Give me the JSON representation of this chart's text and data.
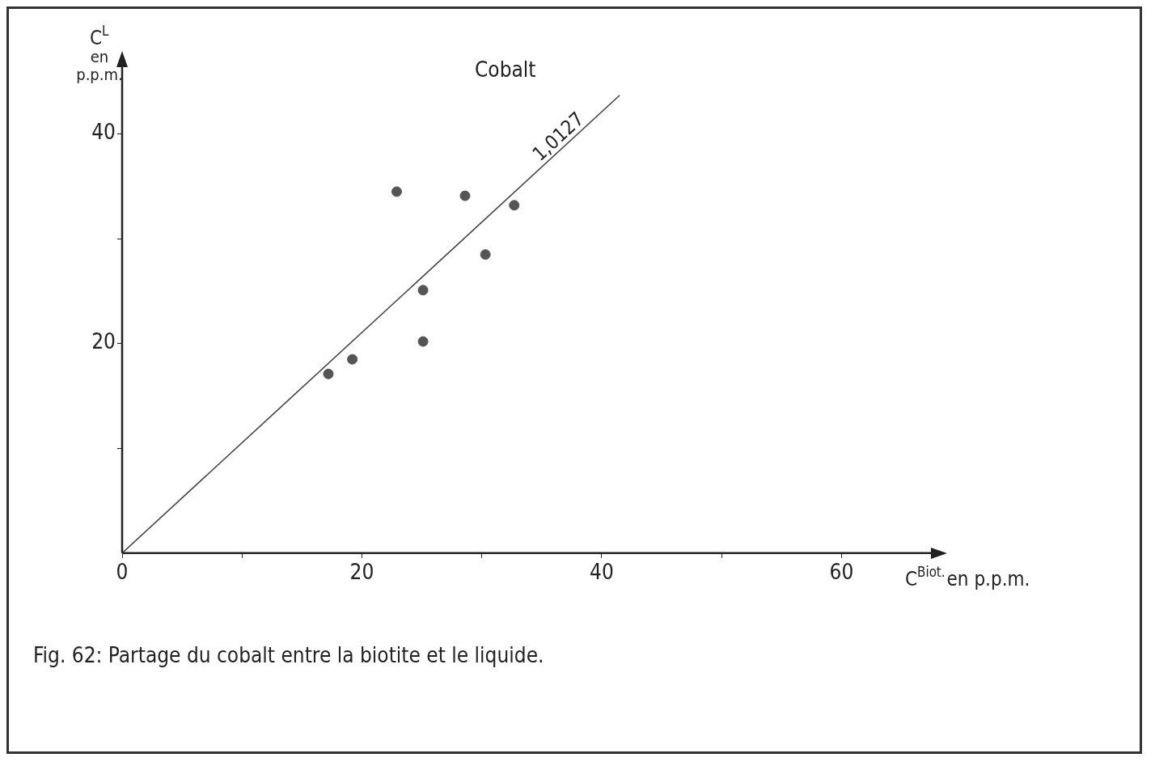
{
  "chart_data": {
    "type": "scatter",
    "title": "Cobalt",
    "xlabel": "C$^{Biot.}$en p.p.m.",
    "ylabel": "C$^{L}$ en p.p.m.",
    "xlim": [
      0,
      68
    ],
    "ylim": [
      0,
      47
    ],
    "xticks": [
      0,
      {
        "value": 10,
        "label": null
      },
      20,
      {
        "value": 30,
        "label": null
      },
      40,
      {
        "value": 50,
        "label": null
      },
      60
    ],
    "yticks": [
      {
        "value": 10,
        "label": null
      },
      20,
      {
        "value": 30,
        "label": null
      },
      40
    ],
    "grid": false,
    "legend": false,
    "marker": "circle",
    "series": [
      {
        "color": "#555555",
        "x": [
          22.9,
          28.6,
          32.7,
          30.3,
          25.1,
          25.1,
          19.2,
          17.2
        ],
        "values": [
          34.5,
          34.1,
          33.2,
          28.5,
          25.1,
          20.2,
          18.5,
          17.1
        ]
      },
      {
        "type": "line",
        "color": "#444444",
        "x": [
          0,
          41.5
        ],
        "values": [
          0,
          43.7
        ],
        "marker": "none",
        "line_style": "solid"
      }
    ],
    "annotations": [
      "1,0127",
      "Fig. 62: Partage du cobalt entre la biotite et le liquide."
    ]
  }
}
